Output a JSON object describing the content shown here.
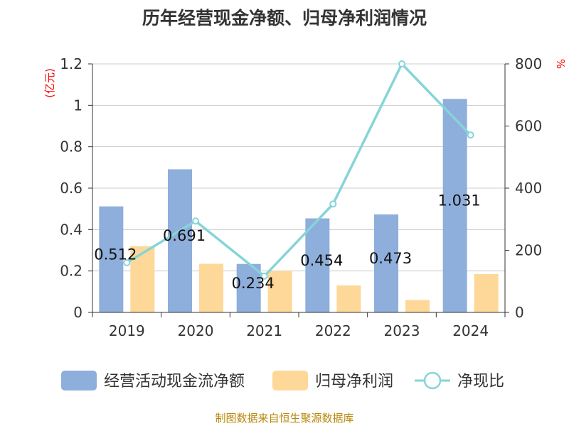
{
  "chart_data": {
    "type": "bar",
    "title": "历年经营现金净额、归母净利润情况",
    "categories": [
      "2019",
      "2020",
      "2021",
      "2022",
      "2023",
      "2024"
    ],
    "series": [
      {
        "name": "经营活动现金流净额",
        "type": "bar",
        "axis": "left",
        "color": "#8eaedb",
        "values": [
          0.512,
          0.691,
          0.234,
          0.454,
          0.473,
          1.031
        ],
        "labels": [
          "0.512",
          "0.691",
          "0.234",
          "0.454",
          "0.473",
          "1.031"
        ]
      },
      {
        "name": "归母净利润",
        "type": "bar",
        "axis": "left",
        "color": "#fed898",
        "values": [
          0.32,
          0.235,
          0.2,
          0.13,
          0.06,
          0.185
        ]
      },
      {
        "name": "净现比",
        "type": "line",
        "axis": "right",
        "color": "#86d4d9",
        "values": [
          160,
          294,
          117,
          349,
          800,
          571
        ]
      }
    ],
    "yleft": {
      "label": "(亿元)",
      "ylim": [
        0,
        1.2
      ],
      "ticks": [
        0,
        0.2,
        0.4,
        0.6,
        0.8,
        1,
        1.2
      ],
      "tick_labels": [
        "0",
        "0.2",
        "0.4",
        "0.6",
        "0.8",
        "1",
        "1.2"
      ]
    },
    "yright": {
      "label": "%",
      "ylim": [
        0,
        800
      ],
      "ticks": [
        0,
        200,
        400,
        600,
        800
      ],
      "tick_labels": [
        "0",
        "200",
        "400",
        "600",
        "800"
      ]
    },
    "grid": true,
    "legend_position": "bottom"
  },
  "source_note": "制图数据来自恒生聚源数据库"
}
